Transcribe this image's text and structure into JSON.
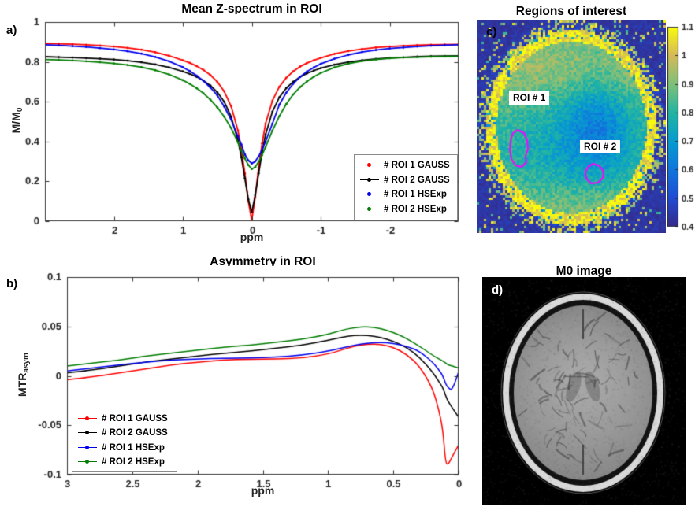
{
  "panels": {
    "a": "a)",
    "b": "b)",
    "c": "c)",
    "d": "d)"
  },
  "chart_data": [
    {
      "id": "z-spectrum",
      "type": "line",
      "title": "Mean Z-spectrum in ROI",
      "xlabel": "ppm",
      "ylabel_main": "M/M",
      "ylabel_sub": "0",
      "xlim": [
        3,
        -3
      ],
      "ylim": [
        0,
        1
      ],
      "xticks": [
        2,
        1,
        0,
        -1,
        -2
      ],
      "yticks": [
        0,
        0.2,
        0.4,
        0.6,
        0.8,
        1
      ],
      "grid": false,
      "legend_position": "lower right",
      "markers": true,
      "x": [
        3,
        2.8,
        2.6,
        2.4,
        2.2,
        2,
        1.8,
        1.6,
        1.4,
        1.2,
        1,
        0.9,
        0.8,
        0.7,
        0.6,
        0.5,
        0.4,
        0.3,
        0.2,
        0.15,
        0.1,
        0.05,
        0,
        -0.05,
        -0.1,
        -0.15,
        -0.2,
        -0.3,
        -0.4,
        -0.5,
        -0.6,
        -0.7,
        -0.8,
        -0.9,
        -1,
        -1.2,
        -1.4,
        -1.6,
        -1.8,
        -2,
        -2.2,
        -2.4,
        -2.6,
        -2.8,
        -3
      ],
      "series": [
        {
          "name": "# ROI 1 GAUSS",
          "color": "#ff0000",
          "values": [
            0.893,
            0.891,
            0.889,
            0.886,
            0.882,
            0.877,
            0.87,
            0.861,
            0.848,
            0.831,
            0.808,
            0.795,
            0.779,
            0.759,
            0.734,
            0.7,
            0.652,
            0.578,
            0.455,
            0.36,
            0.24,
            0.1,
            0.005,
            0.12,
            0.27,
            0.39,
            0.49,
            0.605,
            0.675,
            0.72,
            0.752,
            0.776,
            0.794,
            0.808,
            0.82,
            0.84,
            0.854,
            0.864,
            0.872,
            0.877,
            0.881,
            0.884,
            0.886,
            0.887,
            0.888
          ]
        },
        {
          "name": "# ROI 2 GAUSS",
          "color": "#000000",
          "values": [
            0.826,
            0.824,
            0.822,
            0.819,
            0.816,
            0.812,
            0.806,
            0.798,
            0.787,
            0.772,
            0.752,
            0.74,
            0.725,
            0.706,
            0.681,
            0.648,
            0.6,
            0.525,
            0.405,
            0.32,
            0.215,
            0.11,
            0.045,
            0.13,
            0.24,
            0.345,
            0.435,
            0.55,
            0.622,
            0.668,
            0.7,
            0.724,
            0.742,
            0.756,
            0.768,
            0.786,
            0.799,
            0.808,
            0.815,
            0.82,
            0.823,
            0.826,
            0.828,
            0.829,
            0.83
          ]
        },
        {
          "name": "# ROI 1 HSExp",
          "color": "#0000ee",
          "values": [
            0.886,
            0.883,
            0.879,
            0.875,
            0.869,
            0.862,
            0.853,
            0.841,
            0.825,
            0.803,
            0.773,
            0.754,
            0.731,
            0.704,
            0.671,
            0.632,
            0.576,
            0.51,
            0.425,
            0.385,
            0.335,
            0.305,
            0.29,
            0.3,
            0.325,
            0.36,
            0.4,
            0.49,
            0.585,
            0.645,
            0.69,
            0.724,
            0.751,
            0.772,
            0.79,
            0.816,
            0.835,
            0.849,
            0.859,
            0.867,
            0.872,
            0.877,
            0.881,
            0.884,
            0.886
          ]
        },
        {
          "name": "# ROI 2 HSExp",
          "color": "#007d00",
          "values": [
            0.812,
            0.81,
            0.807,
            0.803,
            0.798,
            0.792,
            0.784,
            0.773,
            0.758,
            0.737,
            0.708,
            0.69,
            0.668,
            0.642,
            0.61,
            0.572,
            0.525,
            0.468,
            0.395,
            0.355,
            0.315,
            0.282,
            0.262,
            0.272,
            0.298,
            0.332,
            0.372,
            0.455,
            0.527,
            0.588,
            0.636,
            0.673,
            0.702,
            0.725,
            0.744,
            0.772,
            0.791,
            0.804,
            0.812,
            0.818,
            0.822,
            0.824,
            0.826,
            0.827,
            0.828
          ]
        }
      ]
    },
    {
      "id": "asymmetry",
      "type": "line",
      "title": "Asymmetry in ROI",
      "xlabel": "ppm",
      "ylabel_main": "MTR",
      "ylabel_sub": "asym",
      "xlim": [
        3,
        0
      ],
      "ylim": [
        -0.1,
        0.1
      ],
      "xticks": [
        3,
        2.5,
        2,
        1.5,
        1,
        0.5,
        0
      ],
      "yticks": [
        -0.1,
        -0.05,
        0,
        0.05,
        0.1
      ],
      "grid": false,
      "legend_position": "lower left",
      "markers": false,
      "x": [
        3,
        2.8,
        2.6,
        2.4,
        2.2,
        2,
        1.8,
        1.6,
        1.4,
        1.2,
        1,
        0.9,
        0.8,
        0.7,
        0.6,
        0.5,
        0.4,
        0.3,
        0.2,
        0.15,
        0.12,
        0.1,
        0.08,
        0.05,
        0
      ],
      "series": [
        {
          "name": "# ROI 1 GAUSS",
          "color": "#ff0000",
          "values": [
            -0.004,
            -0.001,
            0.003,
            0.007,
            0.011,
            0.014,
            0.016,
            0.017,
            0.017,
            0.018,
            0.022,
            0.026,
            0.03,
            0.032,
            0.032,
            0.029,
            0.022,
            0.01,
            -0.012,
            -0.035,
            -0.055,
            -0.088,
            -0.09,
            -0.082,
            -0.07
          ]
        },
        {
          "name": "# ROI 2 GAUSS",
          "color": "#000000",
          "values": [
            0.003,
            0.006,
            0.01,
            0.014,
            0.017,
            0.02,
            0.023,
            0.025,
            0.028,
            0.031,
            0.036,
            0.039,
            0.041,
            0.041,
            0.039,
            0.035,
            0.029,
            0.019,
            0.004,
            -0.006,
            -0.012,
            -0.02,
            -0.026,
            -0.032,
            -0.042
          ]
        },
        {
          "name": "# ROI 1 HSExp",
          "color": "#0000ee",
          "values": [
            0.005,
            0.008,
            0.011,
            0.014,
            0.016,
            0.017,
            0.018,
            0.018,
            0.019,
            0.021,
            0.025,
            0.028,
            0.031,
            0.033,
            0.034,
            0.033,
            0.03,
            0.025,
            0.014,
            0.006,
            0.0,
            -0.008,
            -0.012,
            -0.015,
            0.004
          ]
        },
        {
          "name": "# ROI 2 HSExp",
          "color": "#007d00",
          "values": [
            0.01,
            0.013,
            0.016,
            0.02,
            0.023,
            0.026,
            0.029,
            0.031,
            0.034,
            0.037,
            0.042,
            0.046,
            0.049,
            0.05,
            0.048,
            0.044,
            0.038,
            0.03,
            0.021,
            0.017,
            0.015,
            0.013,
            0.011,
            0.01,
            0.008
          ]
        }
      ]
    }
  ],
  "roi_map": {
    "title": "Regions of interest",
    "roi_labels": [
      "ROI # 1",
      "ROI # 2"
    ],
    "contour_color": "#ff00ff",
    "colorbar": {
      "min": 0.4,
      "max": 1.1,
      "ticks": [
        0.4,
        0.5,
        0.6,
        0.7,
        0.8,
        0.9,
        1,
        1.1
      ]
    }
  },
  "m0_image": {
    "title": "M0 image"
  }
}
